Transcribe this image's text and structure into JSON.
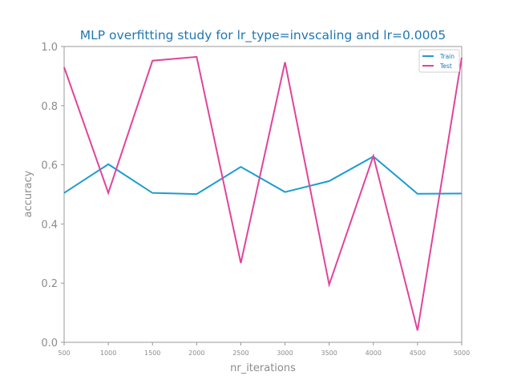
{
  "chart_data": {
    "type": "line",
    "title": "MLP overfitting study for lr_type=invscaling and lr=0.0005",
    "xlabel": "nr_iterations",
    "ylabel": "accuracy",
    "x": [
      500,
      1000,
      1500,
      2000,
      2500,
      3000,
      3500,
      4000,
      4500,
      5000
    ],
    "xlim": [
      500,
      5000
    ],
    "ylim": [
      0.0,
      1.0
    ],
    "x_ticks": [
      "500",
      "1000",
      "1500",
      "2000",
      "2500",
      "3000",
      "3500",
      "4000",
      "4500",
      "5000"
    ],
    "y_ticks": [
      "0.0",
      "0.2",
      "0.4",
      "0.6",
      "0.8",
      "1.0"
    ],
    "grid": false,
    "legend_position": "top-right",
    "series": [
      {
        "name": "Train",
        "color": "#1f9bd1",
        "values": [
          0.505,
          0.602,
          0.505,
          0.501,
          0.593,
          0.508,
          0.545,
          0.628,
          0.502,
          0.503
        ]
      },
      {
        "name": "Test",
        "color": "#e0449b",
        "values": [
          0.93,
          0.505,
          0.952,
          0.965,
          0.268,
          0.947,
          0.195,
          0.63,
          0.04,
          0.962
        ]
      }
    ],
    "colors": {
      "title": "#1f77b4",
      "axis_label": "#8c8c8c",
      "tick_label": "#8c8c8c",
      "spine": "#999999",
      "legend_text": "#1f77b4"
    }
  }
}
